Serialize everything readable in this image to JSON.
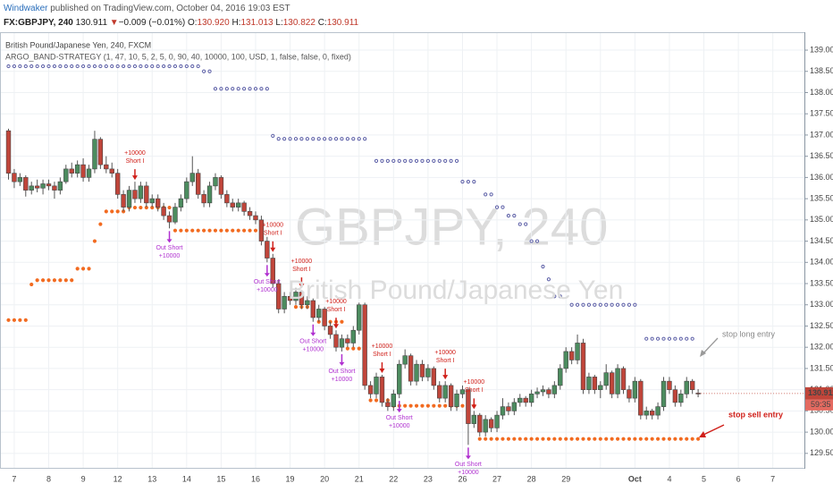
{
  "header": {
    "author": "Windwaker",
    "published": "published on TradingView.com, October 04, 2016 19:03 EST",
    "symbol": "FX:GBPJPY, 240",
    "last": "130.911",
    "arrow": "▼",
    "change": "−0.009 (−0.01%)",
    "o": "O:",
    "ov": "130.920",
    "h": "H:",
    "hv": "131.013",
    "l": "L:",
    "lv": "130.822",
    "c": "C:",
    "cv": "130.911"
  },
  "chart_data": {
    "type": "candlestick",
    "title": "British Pound/Japanese Yen, 240, FXCM",
    "subtitle": "ARGO_BAND-STRATEGY (1, 47, 10, 5, 2, 5, 0, 90, 40, 10000, 100, USD, 1, false, false, 0, fixed)",
    "watermark": "GBPJPY, 240",
    "watermark_sub": "British Pound/Japanese Yen",
    "up_color": "#4c8c5f",
    "down_color": "#c0453a",
    "ylim": [
      129.18,
      139.38
    ],
    "yticks": [
      {
        "value": 129.5,
        "label": "129.500"
      },
      {
        "value": 130,
        "label": "130.000"
      },
      {
        "value": 130.5,
        "label": "130.500"
      },
      {
        "value": 131,
        "label": "131.000"
      },
      {
        "value": 131.5,
        "label": "131.500"
      },
      {
        "value": 132,
        "label": "132.000"
      },
      {
        "value": 132.5,
        "label": "132.500"
      },
      {
        "value": 133,
        "label": "133.000"
      },
      {
        "value": 133.5,
        "label": "133.500"
      },
      {
        "value": 134,
        "label": "134.000"
      },
      {
        "value": 134.5,
        "label": "134.500"
      },
      {
        "value": 135,
        "label": "135.000"
      },
      {
        "value": 135.5,
        "label": "135.500"
      },
      {
        "value": 136,
        "label": "136.000"
      },
      {
        "value": 136.5,
        "label": "136.500"
      },
      {
        "value": 137,
        "label": "137.000"
      },
      {
        "value": 137.5,
        "label": "137.500"
      },
      {
        "value": 138,
        "label": "138.000"
      },
      {
        "value": 138.5,
        "label": "138.500"
      },
      {
        "value": 139,
        "label": "139.000"
      }
    ],
    "grid": true,
    "dates": [
      "7",
      "8",
      "9",
      "12",
      "13",
      "14",
      "15",
      "16",
      "19",
      "20",
      "21",
      "22",
      "23",
      "26",
      "27",
      "28",
      "29",
      null,
      "Oct",
      "4",
      "5",
      "6",
      "7"
    ],
    "bars_per_day": 6,
    "ohlc": [
      [
        137.1,
        137.15,
        135.95,
        136.1
      ],
      [
        136.1,
        136.2,
        135.75,
        135.9
      ],
      [
        135.9,
        136.1,
        135.8,
        136.0
      ],
      [
        136.0,
        136.05,
        135.55,
        135.7
      ],
      [
        135.7,
        135.9,
        135.6,
        135.8
      ],
      [
        135.8,
        135.95,
        135.65,
        135.75
      ],
      [
        135.75,
        135.95,
        135.6,
        135.85
      ],
      [
        135.85,
        135.95,
        135.7,
        135.8
      ],
      [
        135.8,
        135.9,
        135.5,
        135.7
      ],
      [
        135.7,
        136.0,
        135.6,
        135.9
      ],
      [
        135.9,
        136.3,
        135.85,
        136.2
      ],
      [
        136.2,
        136.35,
        136.0,
        136.1
      ],
      [
        136.1,
        136.4,
        136.0,
        136.3
      ],
      [
        136.3,
        136.45,
        135.9,
        136.0
      ],
      [
        136.0,
        136.3,
        135.9,
        136.2
      ],
      [
        136.2,
        137.1,
        136.1,
        136.9
      ],
      [
        136.9,
        136.95,
        136.2,
        136.3
      ],
      [
        136.3,
        136.5,
        136.1,
        136.2
      ],
      [
        136.2,
        136.35,
        136.0,
        136.1
      ],
      [
        136.1,
        136.2,
        135.5,
        135.6
      ],
      [
        135.6,
        135.7,
        135.2,
        135.3
      ],
      [
        135.3,
        135.8,
        135.2,
        135.7
      ],
      [
        135.7,
        135.9,
        135.4,
        135.5
      ],
      [
        135.5,
        135.9,
        135.4,
        135.8
      ],
      [
        135.8,
        135.9,
        135.3,
        135.4
      ],
      [
        135.4,
        135.6,
        135.3,
        135.5
      ],
      [
        135.5,
        135.6,
        135.2,
        135.3
      ],
      [
        135.3,
        135.4,
        135.0,
        135.1
      ],
      [
        135.1,
        135.2,
        134.8,
        134.95
      ],
      [
        134.95,
        135.4,
        134.9,
        135.3
      ],
      [
        135.3,
        135.6,
        135.2,
        135.5
      ],
      [
        135.5,
        136.0,
        135.4,
        135.9
      ],
      [
        135.9,
        136.5,
        135.8,
        136.1
      ],
      [
        136.1,
        136.2,
        135.5,
        135.6
      ],
      [
        135.6,
        135.7,
        135.3,
        135.4
      ],
      [
        135.4,
        135.9,
        135.3,
        135.8
      ],
      [
        135.8,
        136.1,
        135.7,
        136.0
      ],
      [
        136.0,
        136.05,
        135.5,
        135.6
      ],
      [
        135.6,
        135.7,
        135.3,
        135.4
      ],
      [
        135.4,
        135.5,
        135.2,
        135.3
      ],
      [
        135.3,
        135.5,
        135.2,
        135.4
      ],
      [
        135.4,
        135.45,
        135.1,
        135.2
      ],
      [
        135.2,
        135.3,
        135.0,
        135.1
      ],
      [
        135.1,
        135.2,
        134.9,
        135.0
      ],
      [
        135.0,
        135.1,
        134.4,
        134.5
      ],
      [
        134.5,
        134.6,
        134.0,
        134.1
      ],
      [
        134.1,
        134.2,
        133.4,
        133.5
      ],
      [
        133.5,
        133.6,
        132.8,
        132.9
      ],
      [
        132.9,
        133.3,
        132.8,
        133.2
      ],
      [
        133.2,
        133.3,
        133.0,
        133.1
      ],
      [
        133.1,
        133.4,
        133.0,
        133.3
      ],
      [
        133.3,
        133.35,
        132.9,
        133.0
      ],
      [
        133.0,
        133.2,
        132.9,
        133.1
      ],
      [
        133.1,
        133.15,
        132.6,
        132.7
      ],
      [
        132.7,
        133.0,
        132.6,
        132.9
      ],
      [
        132.9,
        132.95,
        132.4,
        132.5
      ],
      [
        132.5,
        132.6,
        132.2,
        132.3
      ],
      [
        132.3,
        132.4,
        131.9,
        132.0
      ],
      [
        132.0,
        132.3,
        131.9,
        132.2
      ],
      [
        132.2,
        132.3,
        132.0,
        132.1
      ],
      [
        132.1,
        132.5,
        132.0,
        132.4
      ],
      [
        132.4,
        133.05,
        132.3,
        133.0
      ],
      [
        133.0,
        133.05,
        131.0,
        131.1
      ],
      [
        131.1,
        131.2,
        130.8,
        130.9
      ],
      [
        130.9,
        131.4,
        130.8,
        131.3
      ],
      [
        131.3,
        131.35,
        130.6,
        130.7
      ],
      [
        130.7,
        130.8,
        130.5,
        130.6
      ],
      [
        130.6,
        131.0,
        130.5,
        130.9
      ],
      [
        130.9,
        131.7,
        130.8,
        131.6
      ],
      [
        131.6,
        131.95,
        131.5,
        131.8
      ],
      [
        131.8,
        131.85,
        131.1,
        131.2
      ],
      [
        131.2,
        131.7,
        131.1,
        131.6
      ],
      [
        131.6,
        131.7,
        131.2,
        131.3
      ],
      [
        131.3,
        131.6,
        131.2,
        131.5
      ],
      [
        131.5,
        131.55,
        131.0,
        131.1
      ],
      [
        131.1,
        131.2,
        130.7,
        130.8
      ],
      [
        130.8,
        131.2,
        130.7,
        131.1
      ],
      [
        131.1,
        131.15,
        130.5,
        130.6
      ],
      [
        130.6,
        131.0,
        130.5,
        130.9
      ],
      [
        130.9,
        131.1,
        130.8,
        131.0
      ],
      [
        131.0,
        131.05,
        129.7,
        130.2
      ],
      [
        130.2,
        130.5,
        130.1,
        130.4
      ],
      [
        130.4,
        130.45,
        129.9,
        130.0
      ],
      [
        130.0,
        130.4,
        129.9,
        130.3
      ],
      [
        130.3,
        130.35,
        130.0,
        130.1
      ],
      [
        130.1,
        130.5,
        130.0,
        130.4
      ],
      [
        130.4,
        130.8,
        130.3,
        130.6
      ],
      [
        130.6,
        130.7,
        130.4,
        130.5
      ],
      [
        130.5,
        130.8,
        130.4,
        130.7
      ],
      [
        130.7,
        130.9,
        130.6,
        130.8
      ],
      [
        130.8,
        130.85,
        130.6,
        130.7
      ],
      [
        130.7,
        131.0,
        130.6,
        130.9
      ],
      [
        130.9,
        131.05,
        130.8,
        130.95
      ],
      [
        130.95,
        131.1,
        130.85,
        131.0
      ],
      [
        131.0,
        131.05,
        130.8,
        130.9
      ],
      [
        130.9,
        131.2,
        130.8,
        131.1
      ],
      [
        131.1,
        131.6,
        131.0,
        131.5
      ],
      [
        131.5,
        132.0,
        131.4,
        131.9
      ],
      [
        131.9,
        132.0,
        131.6,
        131.7
      ],
      [
        131.7,
        132.3,
        131.6,
        132.1
      ],
      [
        132.1,
        132.2,
        130.9,
        131.0
      ],
      [
        131.0,
        131.4,
        130.9,
        131.3
      ],
      [
        131.3,
        131.35,
        130.9,
        131.0
      ],
      [
        131.0,
        131.2,
        130.8,
        131.1
      ],
      [
        131.1,
        131.6,
        131.0,
        131.4
      ],
      [
        131.4,
        131.45,
        130.8,
        130.9
      ],
      [
        130.9,
        131.6,
        130.8,
        131.5
      ],
      [
        131.5,
        131.55,
        130.9,
        131.0
      ],
      [
        131.0,
        131.1,
        130.7,
        130.8
      ],
      [
        130.8,
        131.3,
        130.7,
        131.2
      ],
      [
        131.2,
        131.25,
        130.3,
        130.4
      ],
      [
        130.4,
        130.6,
        130.3,
        130.5
      ],
      [
        130.5,
        130.55,
        130.3,
        130.4
      ],
      [
        130.4,
        130.7,
        130.3,
        130.6
      ],
      [
        130.6,
        131.3,
        130.5,
        131.2
      ],
      [
        131.2,
        131.3,
        130.9,
        131.0
      ],
      [
        131.0,
        131.1,
        130.6,
        130.7
      ],
      [
        130.7,
        131.0,
        130.6,
        130.9
      ],
      [
        130.9,
        131.3,
        130.8,
        131.2
      ],
      [
        131.2,
        131.25,
        130.9,
        131.0
      ],
      [
        130.92,
        131.013,
        130.822,
        130.911
      ]
    ],
    "upper_band": {
      "color": "#5b5ea6",
      "segments": [
        {
          "from": 0,
          "to": 33,
          "value": 138.62
        },
        {
          "from": 34,
          "to": 35,
          "value": 138.5
        },
        {
          "from": 36,
          "to": 45,
          "value": 138.09
        },
        {
          "from": 46,
          "to": 46,
          "value": 136.98
        },
        {
          "from": 47,
          "to": 62,
          "value": 136.91
        },
        {
          "from": 64,
          "to": 78,
          "value": 136.39
        },
        {
          "from": 79,
          "to": 81,
          "value": 135.9
        },
        {
          "from": 83,
          "to": 84,
          "value": 135.6
        },
        {
          "from": 85,
          "to": 86,
          "value": 135.3
        },
        {
          "from": 87,
          "to": 88,
          "value": 135.1
        },
        {
          "from": 89,
          "to": 90,
          "value": 134.9
        },
        {
          "from": 91,
          "to": 92,
          "value": 134.5
        },
        {
          "from": 93,
          "to": 93,
          "value": 133.9
        },
        {
          "from": 94,
          "to": 94,
          "value": 133.6
        },
        {
          "from": 95,
          "to": 96,
          "value": 133.2
        },
        {
          "from": 98,
          "to": 109,
          "value": 133.0
        },
        {
          "from": 111,
          "to": 119,
          "value": 132.2
        }
      ]
    },
    "lower_band": {
      "color": "#f26b21",
      "segments": [
        {
          "from": 0,
          "to": 3,
          "value": 132.64
        },
        {
          "from": 4,
          "to": 4,
          "value": 133.48
        },
        {
          "from": 5,
          "to": 11,
          "value": 133.58
        },
        {
          "from": 12,
          "to": 14,
          "value": 133.85
        },
        {
          "from": 15,
          "to": 15,
          "value": 134.5
        },
        {
          "from": 16,
          "to": 16,
          "value": 134.9
        },
        {
          "from": 17,
          "to": 20,
          "value": 135.2
        },
        {
          "from": 21,
          "to": 28,
          "value": 135.29
        },
        {
          "from": 29,
          "to": 43,
          "value": 134.75
        },
        {
          "from": 50,
          "to": 53,
          "value": 132.95
        },
        {
          "from": 54,
          "to": 58,
          "value": 132.6
        },
        {
          "from": 59,
          "to": 62,
          "value": 131.97
        },
        {
          "from": 63,
          "to": 66,
          "value": 130.75
        },
        {
          "from": 67,
          "to": 81,
          "value": 130.62
        },
        {
          "from": 82,
          "to": 120,
          "value": 129.84
        }
      ]
    },
    "short_entries": [
      {
        "index": 22,
        "labels": [
          "+10000",
          "Short I"
        ]
      },
      {
        "index": 46,
        "labels": [
          "+10000",
          "Short I"
        ]
      },
      {
        "index": 51,
        "labels": [
          "+10000",
          "Short I"
        ]
      },
      {
        "index": 57,
        "labels": [
          "+10000",
          "Short I"
        ]
      },
      {
        "index": 65,
        "labels": [
          "+10000",
          "Short I"
        ]
      },
      {
        "index": 76,
        "labels": [
          "+10000",
          "Short I"
        ]
      },
      {
        "index": 81,
        "labels": [
          "+10000",
          "Short I"
        ]
      }
    ],
    "short_exits": [
      {
        "index": 28,
        "labels": [
          "Out Short",
          "+10000"
        ]
      },
      {
        "index": 45,
        "labels": [
          "Out Short",
          "+10000"
        ]
      },
      {
        "index": 53,
        "labels": [
          "Out Short",
          "+10000"
        ]
      },
      {
        "index": 58,
        "labels": [
          "Out Short",
          "+10000"
        ]
      },
      {
        "index": 68,
        "labels": [
          "Out Short",
          "+10000"
        ]
      },
      {
        "index": 80,
        "labels": [
          "Out Short",
          "+10000"
        ]
      }
    ],
    "annotations": [
      "stop long entry",
      "stop sell entry"
    ],
    "price_label": "130.911",
    "countdown": "59:35"
  }
}
